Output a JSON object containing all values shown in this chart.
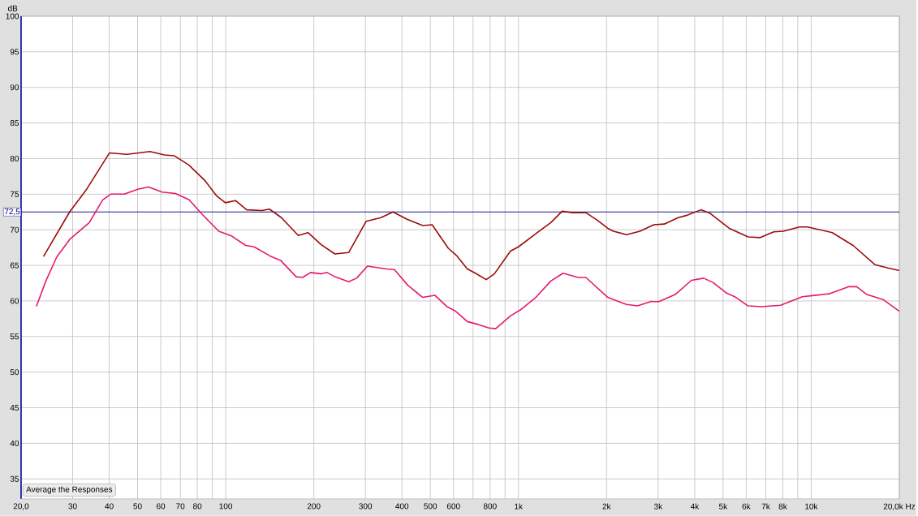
{
  "chart_data": {
    "type": "line",
    "ylabel": "dB",
    "annotations": [
      "Average the Responses"
    ],
    "xlim": [
      20,
      20000
    ],
    "ylim": [
      32.2,
      100
    ],
    "log": "x",
    "grid": true,
    "marker": "none",
    "line_style": "solid",
    "xticks": [
      {
        "value": 20,
        "label": "20,0"
      },
      30,
      40,
      50,
      60,
      70,
      80,
      {
        "value": 90,
        "label": null
      },
      100,
      200,
      300,
      400,
      500,
      600,
      {
        "value": 700,
        "label": null
      },
      800,
      {
        "value": 900,
        "label": null
      },
      {
        "value": 1000,
        "label": "1k"
      },
      {
        "value": 2000,
        "label": "2k"
      },
      {
        "value": 3000,
        "label": "3k"
      },
      {
        "value": 4000,
        "label": "4k"
      },
      {
        "value": 5000,
        "label": "5k"
      },
      {
        "value": 6000,
        "label": "6k"
      },
      {
        "value": 7000,
        "label": "7k"
      },
      {
        "value": 8000,
        "label": "8k"
      },
      {
        "value": 9000,
        "label": null
      },
      {
        "value": 10000,
        "label": "10k"
      },
      {
        "value": 20000,
        "label": "20,0k Hz"
      }
    ],
    "yticks": [
      35,
      40,
      45,
      50,
      55,
      60,
      65,
      70,
      75,
      80,
      85,
      90,
      95,
      100
    ],
    "ref_lines": [
      {
        "axis": "y",
        "value": 72.5,
        "label": "72,5",
        "color": "#000080"
      }
    ],
    "series": [
      {
        "color": "#9b0c0c",
        "x": [
          23.9,
          29.3,
          33.5,
          40.1,
          46.0,
          55.1,
          61.8,
          66.7,
          74.8,
          85.0,
          92.9,
          99.7,
          108,
          118,
          133,
          141,
          155,
          177,
          191,
          212,
          236,
          263,
          302,
          339,
          373,
          415,
          471,
          507,
          576,
          614,
          669,
          713,
          776,
          827,
          939,
          1000,
          1160,
          1290,
          1410,
          1530,
          1700,
          1850,
          2020,
          2110,
          2340,
          2600,
          2900,
          3150,
          3510,
          3740,
          4200,
          4520,
          5250,
          6090,
          6700,
          7450,
          8030,
          9120,
          9720,
          11800,
          13900,
          16500,
          18400,
          19900
        ],
        "values": [
          66.3,
          72.5,
          75.7,
          80.8,
          80.6,
          81.0,
          80.5,
          80.4,
          79.1,
          76.9,
          74.8,
          73.8,
          74.1,
          72.8,
          72.7,
          72.9,
          71.7,
          69.2,
          69.6,
          67.9,
          66.6,
          66.8,
          71.2,
          71.7,
          72.5,
          71.5,
          70.6,
          70.7,
          67.4,
          66.4,
          64.5,
          63.9,
          63.0,
          63.8,
          67.0,
          67.6,
          69.6,
          71.0,
          72.6,
          72.4,
          72.4,
          71.4,
          70.2,
          69.8,
          69.3,
          69.8,
          70.7,
          70.8,
          71.7,
          72.0,
          72.8,
          72.3,
          70.2,
          69.0,
          68.9,
          69.7,
          69.8,
          70.4,
          70.4,
          69.6,
          67.8,
          65.1,
          64.6,
          64.3
        ]
      },
      {
        "color": "#e8186f",
        "x": [
          22.6,
          24.3,
          26.5,
          29.4,
          34.2,
          38.0,
          40.5,
          45.0,
          50.1,
          54.5,
          60.6,
          67.4,
          75.0,
          83.4,
          94.7,
          105,
          117,
          125,
          142,
          154,
          174,
          183,
          195,
          212,
          222,
          236,
          263,
          280,
          305,
          354,
          377,
          419,
          471,
          518,
          570,
          608,
          669,
          728,
          793,
          836,
          939,
          1020,
          1140,
          1290,
          1420,
          1600,
          1700,
          2020,
          2340,
          2550,
          2830,
          3020,
          3430,
          3900,
          4290,
          4620,
          5140,
          5480,
          6090,
          6770,
          7860,
          9320,
          10400,
          11500,
          13400,
          14300,
          15500,
          17600,
          19900
        ],
        "values": [
          59.3,
          62.8,
          66.2,
          68.7,
          71.0,
          74.2,
          75.0,
          75.0,
          75.7,
          76.0,
          75.3,
          75.1,
          74.2,
          72.1,
          69.8,
          69.1,
          67.8,
          67.6,
          66.3,
          65.7,
          63.4,
          63.3,
          64.0,
          63.8,
          64.0,
          63.4,
          62.7,
          63.2,
          64.9,
          64.5,
          64.4,
          62.2,
          60.5,
          60.8,
          59.2,
          58.6,
          57.1,
          56.7,
          56.2,
          56.1,
          57.9,
          58.8,
          60.4,
          62.8,
          63.9,
          63.3,
          63.3,
          60.5,
          59.5,
          59.3,
          59.9,
          59.9,
          60.9,
          62.9,
          63.2,
          62.6,
          61.1,
          60.6,
          59.3,
          59.2,
          59.4,
          60.6,
          60.8,
          61.0,
          62.0,
          62.0,
          60.9,
          60.2,
          58.6
        ]
      }
    ]
  }
}
